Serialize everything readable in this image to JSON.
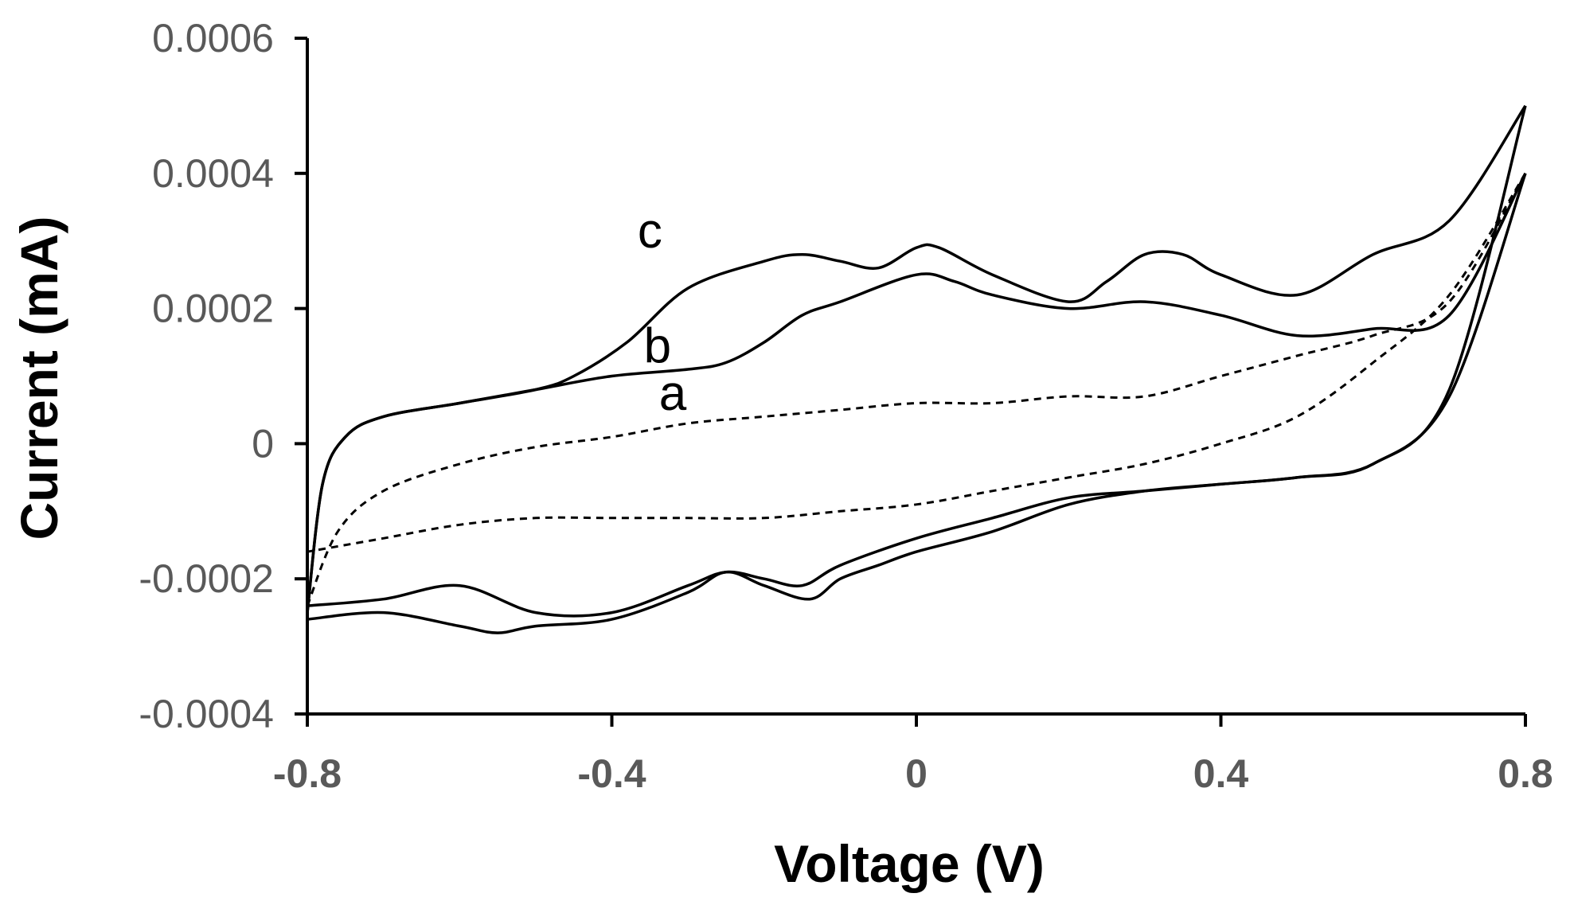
{
  "chart_data": {
    "type": "line",
    "title": "",
    "xlabel": "Voltage (V)",
    "ylabel": "Current (mA)",
    "xlim": [
      -0.8,
      0.8
    ],
    "ylim": [
      -0.0004,
      0.0006
    ],
    "x_ticks": [
      -0.8,
      -0.4,
      0,
      0.4,
      0.8
    ],
    "x_tick_labels": [
      "-0.8",
      "-0.4",
      "0",
      "0.4",
      "0.8"
    ],
    "y_ticks": [
      0.0006,
      0.0004,
      0.0002,
      0,
      -0.0002,
      -0.0004
    ],
    "y_tick_labels": [
      "0.0006",
      "0.0004",
      "0.0002",
      "0",
      "-0.0002",
      "-0.0004"
    ],
    "grid": false,
    "legend": "none",
    "colors": {
      "axis": "#000000",
      "tick_text": "#595959",
      "line": "#000000"
    },
    "series": [
      {
        "name": "a",
        "label": "a",
        "label_at": [
          -0.32,
          5e-05
        ],
        "style": "dashed",
        "forward": [
          [
            -0.8,
            -0.00024
          ],
          [
            -0.76,
            -0.00013
          ],
          [
            -0.7,
            -7e-05
          ],
          [
            -0.6,
            -3e-05
          ],
          [
            -0.5,
            -5e-06
          ],
          [
            -0.4,
            1e-05
          ],
          [
            -0.3,
            3e-05
          ],
          [
            -0.2,
            4e-05
          ],
          [
            -0.1,
            5e-05
          ],
          [
            0,
            6e-05
          ],
          [
            0.1,
            6e-05
          ],
          [
            0.2,
            7e-05
          ],
          [
            0.3,
            7e-05
          ],
          [
            0.4,
            0.0001
          ],
          [
            0.5,
            0.00013
          ],
          [
            0.6,
            0.00016
          ],
          [
            0.7,
            0.00021
          ],
          [
            0.8,
            0.0004
          ]
        ],
        "reverse": [
          [
            0.8,
            0.0004
          ],
          [
            0.7,
            0.00022
          ],
          [
            0.6,
            0.00012
          ],
          [
            0.5,
            4e-05
          ],
          [
            0.4,
            0.0
          ],
          [
            0.3,
            -3e-05
          ],
          [
            0.2,
            -5e-05
          ],
          [
            0.1,
            -7e-05
          ],
          [
            0,
            -9e-05
          ],
          [
            -0.1,
            -0.0001
          ],
          [
            -0.2,
            -0.00011
          ],
          [
            -0.3,
            -0.00011
          ],
          [
            -0.4,
            -0.00011
          ],
          [
            -0.5,
            -0.00011
          ],
          [
            -0.6,
            -0.00012
          ],
          [
            -0.7,
            -0.00014
          ],
          [
            -0.8,
            -0.00016
          ]
        ]
      },
      {
        "name": "b",
        "label": "b",
        "label_at": [
          -0.34,
          0.00012
        ],
        "style": "solid",
        "forward": [
          [
            -0.8,
            -0.00025
          ],
          [
            -0.78,
            -6e-05
          ],
          [
            -0.75,
            1e-05
          ],
          [
            -0.7,
            4e-05
          ],
          [
            -0.6,
            6e-05
          ],
          [
            -0.5,
            8e-05
          ],
          [
            -0.4,
            0.0001
          ],
          [
            -0.3,
            0.00011
          ],
          [
            -0.25,
            0.00012
          ],
          [
            -0.2,
            0.00015
          ],
          [
            -0.15,
            0.00019
          ],
          [
            -0.1,
            0.00021
          ],
          [
            0,
            0.00025
          ],
          [
            0.05,
            0.00024
          ],
          [
            0.1,
            0.00022
          ],
          [
            0.2,
            0.0002
          ],
          [
            0.3,
            0.00021
          ],
          [
            0.4,
            0.00019
          ],
          [
            0.5,
            0.00016
          ],
          [
            0.6,
            0.00017
          ],
          [
            0.7,
            0.00019
          ],
          [
            0.8,
            0.0004
          ]
        ],
        "reverse": [
          [
            0.8,
            0.0004
          ],
          [
            0.7,
            7e-05
          ],
          [
            0.6,
            -3e-05
          ],
          [
            0.5,
            -5e-05
          ],
          [
            0.4,
            -6e-05
          ],
          [
            0.3,
            -7e-05
          ],
          [
            0.2,
            -9e-05
          ],
          [
            0.1,
            -0.00013
          ],
          [
            0,
            -0.00016
          ],
          [
            -0.05,
            -0.00018
          ],
          [
            -0.1,
            -0.0002
          ],
          [
            -0.14,
            -0.00023
          ],
          [
            -0.2,
            -0.00021
          ],
          [
            -0.25,
            -0.00019
          ],
          [
            -0.3,
            -0.00022
          ],
          [
            -0.4,
            -0.00026
          ],
          [
            -0.5,
            -0.00027
          ],
          [
            -0.55,
            -0.00028
          ],
          [
            -0.6,
            -0.00027
          ],
          [
            -0.7,
            -0.00025
          ],
          [
            -0.8,
            -0.00026
          ]
        ]
      },
      {
        "name": "c",
        "label": "c",
        "label_at": [
          -0.35,
          0.00029
        ],
        "style": "solid",
        "forward": [
          [
            -0.8,
            -0.00025
          ],
          [
            -0.78,
            -6e-05
          ],
          [
            -0.75,
            1e-05
          ],
          [
            -0.7,
            4e-05
          ],
          [
            -0.6,
            6e-05
          ],
          [
            -0.5,
            8e-05
          ],
          [
            -0.45,
            0.0001
          ],
          [
            -0.38,
            0.00015
          ],
          [
            -0.3,
            0.00023
          ],
          [
            -0.2,
            0.00027
          ],
          [
            -0.15,
            0.00028
          ],
          [
            -0.1,
            0.00027
          ],
          [
            -0.05,
            0.00026
          ],
          [
            0,
            0.00029
          ],
          [
            0.03,
            0.00029
          ],
          [
            0.1,
            0.00025
          ],
          [
            0.2,
            0.00021
          ],
          [
            0.25,
            0.00024
          ],
          [
            0.3,
            0.00028
          ],
          [
            0.35,
            0.00028
          ],
          [
            0.4,
            0.00025
          ],
          [
            0.5,
            0.00022
          ],
          [
            0.6,
            0.00028
          ],
          [
            0.7,
            0.00033
          ],
          [
            0.8,
            0.0005
          ]
        ],
        "reverse": [
          [
            0.8,
            0.0005
          ],
          [
            0.7,
            8e-05
          ],
          [
            0.6,
            -3e-05
          ],
          [
            0.5,
            -5e-05
          ],
          [
            0.4,
            -6e-05
          ],
          [
            0.3,
            -7e-05
          ],
          [
            0.2,
            -8e-05
          ],
          [
            0.1,
            -0.00011
          ],
          [
            0,
            -0.00014
          ],
          [
            -0.1,
            -0.00018
          ],
          [
            -0.15,
            -0.00021
          ],
          [
            -0.2,
            -0.0002
          ],
          [
            -0.25,
            -0.00019
          ],
          [
            -0.3,
            -0.00021
          ],
          [
            -0.4,
            -0.00025
          ],
          [
            -0.5,
            -0.00025
          ],
          [
            -0.6,
            -0.00021
          ],
          [
            -0.7,
            -0.00023
          ],
          [
            -0.8,
            -0.00024
          ]
        ]
      }
    ]
  }
}
